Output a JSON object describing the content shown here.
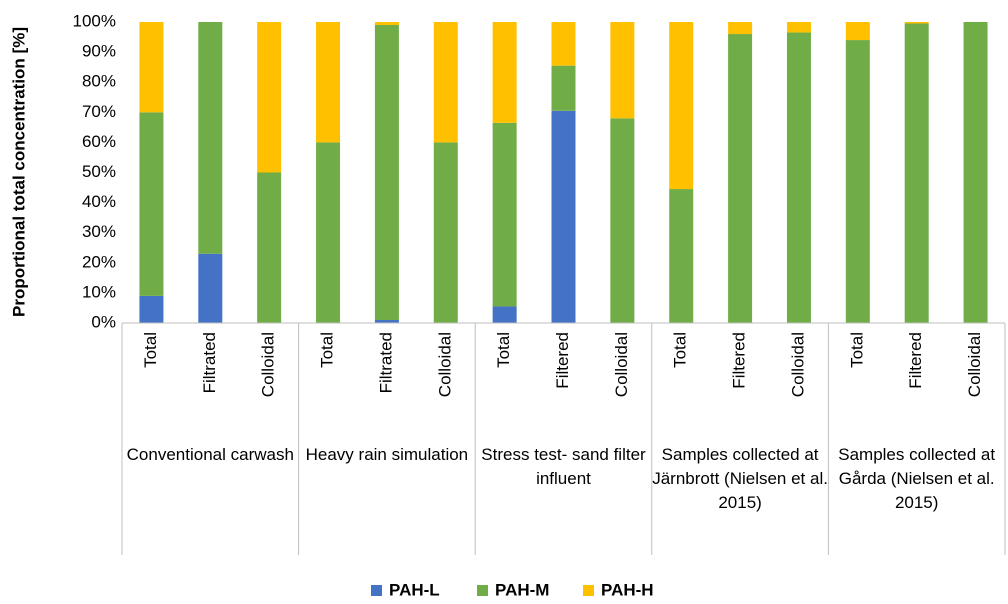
{
  "chart_data": {
    "type": "stacked_bar",
    "ylabel": "Proportional total concentration [%]",
    "categories": [
      "Total",
      "Filtrated",
      "Colloidal",
      "Total",
      "Filtrated",
      "Colloidal",
      "Total",
      "Filtered",
      "Colloidal",
      "Total",
      "Filtered",
      "Colloidal",
      "Total",
      "Filtered",
      "Colloidal"
    ],
    "groups": [
      "Conventional carwash",
      "Heavy rain simulation",
      "Stress test- sand filter influent",
      "Samples collected at Järnbrott (Nielsen et al. 2015)",
      "Samples collected at Gårda (Nielsen et al. 2015)"
    ],
    "series": [
      {
        "name": "PAH-L",
        "color": "#4472c4",
        "values": [
          9,
          23,
          0,
          0,
          1,
          0,
          5.5,
          70.5,
          0,
          0,
          0,
          0,
          0,
          0,
          0
        ]
      },
      {
        "name": "PAH-M",
        "color": "#70ad47",
        "values": [
          61,
          77,
          50,
          60,
          98,
          60,
          61,
          15,
          68,
          44.5,
          96,
          96.5,
          94,
          99.5,
          100
        ]
      },
      {
        "name": "PAH-H",
        "color": "#ffc000",
        "values": [
          30,
          0,
          50,
          40,
          1,
          40,
          33.5,
          14.5,
          32,
          55.5,
          4,
          3.5,
          6,
          0.5,
          0
        ]
      }
    ],
    "ylim": [
      0,
      100
    ],
    "yticks": [
      {
        "value": 0,
        "label": "0%"
      },
      {
        "value": 10,
        "label": "10%"
      },
      {
        "value": 20,
        "label": "20%"
      },
      {
        "value": 30,
        "label": "30%"
      },
      {
        "value": 40,
        "label": "40%"
      },
      {
        "value": 50,
        "label": "50%"
      },
      {
        "value": 60,
        "label": "60%"
      },
      {
        "value": 70,
        "label": "70%"
      },
      {
        "value": 80,
        "label": "80%"
      },
      {
        "value": 90,
        "label": "90%"
      },
      {
        "value": 100,
        "label": "100%"
      }
    ],
    "legend": "bottom"
  }
}
